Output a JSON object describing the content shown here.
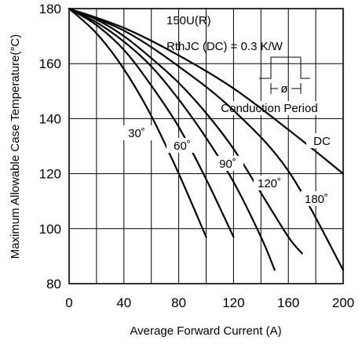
{
  "chart_data": {
    "type": "line",
    "title": "",
    "xlabel": "Average Forward Current (A)",
    "ylabel": "Maximum Allowable Case Temperature(°C)",
    "xlim": [
      0,
      200
    ],
    "ylim": [
      80,
      180
    ],
    "x_ticks": [
      0,
      40,
      80,
      120,
      160,
      200
    ],
    "y_ticks": [
      80,
      100,
      120,
      140,
      160,
      180
    ],
    "grid": true,
    "annotations": {
      "device": "150U(R)",
      "rth": "RthJC (DC) = 0.3 K/W",
      "phi": "ø",
      "conduction": "Conduction Period"
    },
    "series": [
      {
        "label": "30˚",
        "x": [
          0,
          20,
          40,
          60,
          80,
          100
        ],
        "y": [
          180,
          171,
          158,
          141,
          120,
          97
        ]
      },
      {
        "label": "60˚",
        "x": [
          0,
          20,
          40,
          60,
          80,
          100,
          120
        ],
        "y": [
          180,
          174,
          165,
          152,
          137,
          118,
          97
        ]
      },
      {
        "label": "90˚",
        "x": [
          0,
          20,
          40,
          60,
          80,
          100,
          120,
          140,
          150
        ],
        "y": [
          180,
          175,
          168,
          159,
          147,
          133,
          117,
          97,
          85
        ]
      },
      {
        "label": "120˚",
        "x": [
          0,
          20,
          40,
          60,
          80,
          100,
          120,
          140,
          160,
          170
        ],
        "y": [
          180,
          176,
          170,
          162,
          153,
          142,
          129,
          113,
          97,
          91
        ]
      },
      {
        "label": "180˚",
        "x": [
          0,
          40,
          80,
          120,
          160,
          200
        ],
        "y": [
          180,
          172,
          159,
          143,
          121,
          85
        ]
      },
      {
        "label": "DC",
        "x": [
          0,
          40,
          80,
          120,
          160,
          200
        ],
        "y": [
          180,
          173,
          163,
          151,
          136,
          120
        ]
      }
    ]
  }
}
